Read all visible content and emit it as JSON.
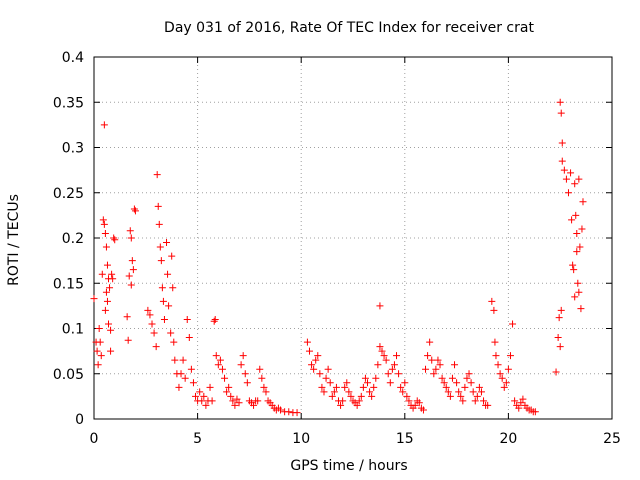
{
  "chart_data": {
    "type": "scatter",
    "title": "Day 031 of 2016, Rate Of TEC Index for receiver crat",
    "xlabel": "GPS time / hours",
    "ylabel": "ROTI / TECUs",
    "xlim": [
      0,
      25
    ],
    "ylim": [
      0,
      0.4
    ],
    "xticks": [
      0,
      5,
      10,
      15,
      20,
      25
    ],
    "xtick_labels": [
      "0",
      "5",
      "10",
      "15",
      "20",
      "25"
    ],
    "yticks": [
      0,
      0.05,
      0.1,
      0.15,
      0.2,
      0.25,
      0.3,
      0.35,
      0.4
    ],
    "ytick_labels": [
      "0",
      "0.05",
      "0.1",
      "0.15",
      "0.2",
      "0.25",
      "0.3",
      "0.35",
      "0.4"
    ],
    "grid": true,
    "marker": "+",
    "color": "#ff0000",
    "series": [
      {
        "name": "ROTI",
        "x": [
          0.0,
          0.1,
          0.15,
          0.2,
          0.25,
          0.3,
          0.35,
          0.4,
          0.45,
          0.5,
          0.55,
          0.6,
          0.65,
          0.7,
          0.75,
          0.8,
          0.85,
          0.9,
          0.95,
          1.0,
          0.5,
          0.55,
          0.6,
          0.65,
          0.7,
          0.8,
          1.6,
          1.65,
          1.7,
          1.8,
          1.85,
          1.9,
          1.95,
          2.0,
          1.75,
          1.8,
          2.6,
          2.7,
          2.8,
          2.9,
          3.0,
          3.05,
          3.1,
          3.15,
          3.2,
          3.25,
          3.3,
          3.35,
          3.4,
          3.5,
          3.55,
          3.6,
          3.7,
          3.75,
          3.8,
          3.85,
          3.9,
          4.0,
          4.1,
          4.2,
          4.3,
          4.4,
          4.5,
          4.6,
          4.7,
          4.8,
          4.9,
          5.0,
          5.1,
          5.2,
          5.3,
          5.4,
          5.5,
          5.6,
          5.7,
          5.8,
          5.85,
          5.9,
          6.0,
          6.1,
          6.2,
          6.3,
          6.4,
          6.5,
          6.6,
          6.7,
          6.8,
          6.9,
          7.0,
          7.1,
          7.2,
          7.3,
          7.4,
          7.5,
          7.6,
          7.7,
          7.8,
          7.9,
          8.0,
          8.1,
          8.2,
          8.3,
          8.4,
          8.5,
          8.6,
          8.7,
          8.8,
          8.9,
          9.0,
          9.2,
          9.4,
          9.6,
          9.8,
          10.3,
          10.4,
          10.5,
          10.6,
          10.7,
          10.8,
          10.9,
          11.0,
          11.1,
          11.2,
          11.3,
          11.4,
          11.5,
          11.6,
          11.7,
          11.8,
          11.9,
          12.0,
          12.1,
          12.2,
          12.3,
          12.4,
          12.5,
          12.6,
          12.7,
          12.8,
          12.9,
          13.0,
          13.1,
          13.2,
          13.3,
          13.4,
          13.5,
          13.6,
          13.7,
          13.8,
          13.9,
          14.0,
          14.1,
          14.2,
          14.3,
          14.4,
          14.5,
          14.6,
          14.7,
          14.8,
          14.9,
          15.0,
          15.1,
          15.2,
          15.3,
          15.4,
          15.5,
          15.6,
          15.7,
          15.8,
          15.9,
          16.0,
          16.1,
          16.2,
          16.3,
          16.4,
          16.5,
          16.6,
          16.7,
          16.8,
          16.9,
          17.0,
          17.1,
          17.2,
          17.3,
          17.4,
          17.5,
          17.6,
          17.7,
          17.8,
          17.9,
          18.0,
          18.1,
          18.2,
          18.3,
          18.4,
          18.5,
          18.6,
          18.7,
          18.8,
          18.9,
          19.0,
          19.2,
          19.3,
          19.35,
          19.4,
          19.5,
          19.6,
          19.7,
          19.8,
          19.9,
          20.0,
          20.1,
          20.2,
          20.3,
          20.4,
          20.5,
          20.6,
          20.7,
          20.8,
          20.9,
          21.0,
          21.1,
          21.2,
          21.3,
          13.8,
          22.3,
          22.4,
          22.45,
          22.5,
          22.55,
          22.6,
          22.7,
          22.8,
          22.9,
          23.0,
          23.05,
          23.1,
          23.15,
          23.2,
          23.25,
          23.3,
          23.35,
          23.4,
          23.45,
          23.5,
          23.55,
          23.6,
          22.5,
          22.55,
          22.6,
          23.2,
          23.3,
          23.4
        ],
        "y": [
          0.133,
          0.085,
          0.075,
          0.06,
          0.1,
          0.085,
          0.07,
          0.16,
          0.22,
          0.215,
          0.205,
          0.19,
          0.17,
          0.155,
          0.145,
          0.075,
          0.16,
          0.155,
          0.2,
          0.198,
          0.325,
          0.12,
          0.14,
          0.13,
          0.105,
          0.098,
          0.113,
          0.087,
          0.158,
          0.2,
          0.175,
          0.165,
          0.232,
          0.23,
          0.208,
          0.148,
          0.12,
          0.115,
          0.105,
          0.095,
          0.08,
          0.27,
          0.235,
          0.215,
          0.19,
          0.175,
          0.145,
          0.13,
          0.11,
          0.195,
          0.16,
          0.125,
          0.095,
          0.18,
          0.145,
          0.085,
          0.065,
          0.05,
          0.035,
          0.05,
          0.065,
          0.045,
          0.11,
          0.09,
          0.055,
          0.04,
          0.025,
          0.02,
          0.03,
          0.02,
          0.025,
          0.015,
          0.02,
          0.035,
          0.02,
          0.108,
          0.11,
          0.07,
          0.06,
          0.065,
          0.055,
          0.045,
          0.03,
          0.035,
          0.025,
          0.02,
          0.015,
          0.022,
          0.018,
          0.06,
          0.07,
          0.05,
          0.04,
          0.02,
          0.018,
          0.015,
          0.02,
          0.02,
          0.055,
          0.045,
          0.035,
          0.03,
          0.02,
          0.018,
          0.015,
          0.012,
          0.01,
          0.012,
          0.01,
          0.008,
          0.008,
          0.007,
          0.007,
          0.085,
          0.075,
          0.06,
          0.055,
          0.065,
          0.07,
          0.05,
          0.035,
          0.03,
          0.045,
          0.055,
          0.04,
          0.025,
          0.03,
          0.035,
          0.02,
          0.015,
          0.02,
          0.035,
          0.04,
          0.03,
          0.025,
          0.02,
          0.018,
          0.015,
          0.02,
          0.025,
          0.035,
          0.045,
          0.04,
          0.03,
          0.025,
          0.035,
          0.045,
          0.06,
          0.08,
          0.075,
          0.07,
          0.065,
          0.05,
          0.04,
          0.055,
          0.06,
          0.07,
          0.05,
          0.035,
          0.03,
          0.04,
          0.025,
          0.02,
          0.015,
          0.012,
          0.015,
          0.02,
          0.018,
          0.012,
          0.01,
          0.055,
          0.07,
          0.085,
          0.065,
          0.05,
          0.055,
          0.065,
          0.06,
          0.045,
          0.04,
          0.035,
          0.03,
          0.025,
          0.045,
          0.06,
          0.04,
          0.03,
          0.025,
          0.02,
          0.035,
          0.045,
          0.05,
          0.04,
          0.03,
          0.02,
          0.025,
          0.035,
          0.03,
          0.02,
          0.015,
          0.015,
          0.13,
          0.12,
          0.085,
          0.07,
          0.06,
          0.05,
          0.045,
          0.035,
          0.04,
          0.055,
          0.07,
          0.105,
          0.02,
          0.015,
          0.012,
          0.018,
          0.022,
          0.015,
          0.012,
          0.01,
          0.01,
          0.008,
          0.008,
          0.125,
          0.052,
          0.09,
          0.112,
          0.35,
          0.338,
          0.305,
          0.275,
          0.265,
          0.25,
          0.272,
          0.22,
          0.17,
          0.165,
          0.26,
          0.225,
          0.205,
          0.15,
          0.14,
          0.19,
          0.122,
          0.21,
          0.24,
          0.08,
          0.12,
          0.285,
          0.135,
          0.185,
          0.265
        ]
      }
    ]
  }
}
